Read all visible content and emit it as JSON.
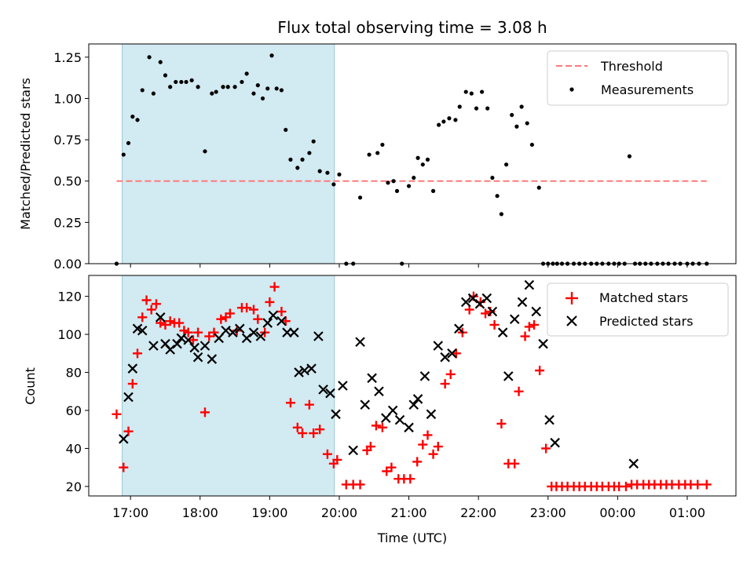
{
  "chart_data": {
    "title": "Flux total observing time = 3.08 h",
    "xlabel": "Time (UTC)",
    "x_unit": "hours UTC (values > 24 are after midnight)",
    "x_range": [
      16.4,
      25.7
    ],
    "x_ticks": [
      {
        "value": 17,
        "label": "17:00"
      },
      {
        "value": 18,
        "label": "18:00"
      },
      {
        "value": 19,
        "label": "19:00"
      },
      {
        "value": 20,
        "label": "20:00"
      },
      {
        "value": 21,
        "label": "21:00"
      },
      {
        "value": 22,
        "label": "22:00"
      },
      {
        "value": 23,
        "label": "23:00"
      },
      {
        "value": 24,
        "label": "00:00"
      },
      {
        "value": 25,
        "label": "01:00"
      }
    ],
    "shaded_region": {
      "x_start": 16.88,
      "x_end": 19.93,
      "color": "#add8e6"
    },
    "top_panel": {
      "type": "scatter",
      "ylabel": "Matched/Predicted stars",
      "ylim": [
        0,
        1.33
      ],
      "yticks": [
        "0.00",
        "0.25",
        "0.50",
        "0.75",
        "1.00",
        "1.25"
      ],
      "threshold": {
        "name": "Threshold",
        "value": 0.5,
        "x_start": 16.8,
        "x_end": 25.28,
        "color": "#ff8080"
      },
      "measurements": {
        "name": "Measurements",
        "color": "#000000",
        "x": [
          16.8,
          16.9,
          16.97,
          17.03,
          17.1,
          17.17,
          17.27,
          17.33,
          17.43,
          17.5,
          17.57,
          17.65,
          17.73,
          17.8,
          17.88,
          17.97,
          18.07,
          18.17,
          18.23,
          18.33,
          18.4,
          18.5,
          18.6,
          18.67,
          18.77,
          18.83,
          18.9,
          18.97,
          19.03,
          19.1,
          19.17,
          19.23,
          19.3,
          19.4,
          19.47,
          19.57,
          19.63,
          19.72,
          19.83,
          19.92,
          20.0,
          20.1,
          20.2,
          20.3,
          20.43,
          20.55,
          20.62,
          20.7,
          20.78,
          20.83,
          20.9,
          21.0,
          21.07,
          21.13,
          21.2,
          21.27,
          21.35,
          21.43,
          21.5,
          21.58,
          21.67,
          21.73,
          21.82,
          21.9,
          21.97,
          22.05,
          22.13,
          22.2,
          22.27,
          22.33,
          22.4,
          22.48,
          22.55,
          22.62,
          22.7,
          22.77,
          22.87,
          22.93,
          23.0,
          23.07,
          23.13,
          23.2,
          23.28,
          23.37,
          23.45,
          23.53,
          23.62,
          23.7,
          23.78,
          23.87,
          23.95,
          24.02,
          24.1,
          24.17,
          24.25,
          24.32,
          24.4,
          24.48,
          24.57,
          24.65,
          24.73,
          24.82,
          24.9,
          25.0,
          25.08,
          25.17,
          25.28
        ],
        "y": [
          0.0,
          0.66,
          0.73,
          0.89,
          0.87,
          1.05,
          1.25,
          1.03,
          1.22,
          1.14,
          1.07,
          1.1,
          1.1,
          1.1,
          1.11,
          1.07,
          0.68,
          1.03,
          1.04,
          1.07,
          1.07,
          1.07,
          1.1,
          1.15,
          1.03,
          1.08,
          1.0,
          1.06,
          1.26,
          1.06,
          1.05,
          0.81,
          0.63,
          0.58,
          0.63,
          0.67,
          0.74,
          0.56,
          0.55,
          0.48,
          0.54,
          0.0,
          0.0,
          0.4,
          0.66,
          0.67,
          0.72,
          0.49,
          0.5,
          0.44,
          0.0,
          0.47,
          0.52,
          0.64,
          0.6,
          0.63,
          0.44,
          0.84,
          0.86,
          0.88,
          0.87,
          0.95,
          1.04,
          1.03,
          0.94,
          1.04,
          0.94,
          0.52,
          0.41,
          0.3,
          0.6,
          0.9,
          0.83,
          0.95,
          0.85,
          0.72,
          0.46,
          0.0,
          0.0,
          0.0,
          0.0,
          0.0,
          0.0,
          0.0,
          0.0,
          0.0,
          0.0,
          0.0,
          0.0,
          0.0,
          0.0,
          0.0,
          0.0,
          0.65,
          0.0,
          0.0,
          0.0,
          0.0,
          0.0,
          0.0,
          0.0,
          0.0,
          0.0,
          0.0,
          0.0,
          0.0,
          0.0
        ]
      },
      "legend": {
        "position": "upper right",
        "entries": [
          "Threshold",
          "Measurements"
        ]
      }
    },
    "bottom_panel": {
      "type": "scatter",
      "ylabel": "Count",
      "ylim": [
        15,
        131
      ],
      "yticks": [
        "20",
        "40",
        "60",
        "80",
        "100",
        "120"
      ],
      "series": [
        {
          "name": "Matched stars",
          "marker": "+",
          "color": "#ff0000",
          "x": [
            16.8,
            16.9,
            16.97,
            17.03,
            17.1,
            17.17,
            17.23,
            17.3,
            17.37,
            17.43,
            17.5,
            17.57,
            17.63,
            17.7,
            17.77,
            17.83,
            17.9,
            17.97,
            18.07,
            18.13,
            18.2,
            18.3,
            18.37,
            18.43,
            18.53,
            18.6,
            18.67,
            18.77,
            18.83,
            18.93,
            19.0,
            19.07,
            19.17,
            19.23,
            19.3,
            19.4,
            19.47,
            19.57,
            19.63,
            19.72,
            19.83,
            19.92,
            19.97,
            20.1,
            20.2,
            20.3,
            20.4,
            20.45,
            20.53,
            20.62,
            20.68,
            20.75,
            20.85,
            20.93,
            21.02,
            21.12,
            21.2,
            21.27,
            21.35,
            21.42,
            21.52,
            21.6,
            21.68,
            21.77,
            21.87,
            21.93,
            22.03,
            22.1,
            22.17,
            22.23,
            22.33,
            22.43,
            22.52,
            22.58,
            22.67,
            22.73,
            22.8,
            22.88,
            22.97,
            23.05,
            23.12,
            23.2,
            23.28,
            23.37,
            23.45,
            23.53,
            23.62,
            23.7,
            23.78,
            23.87,
            23.95,
            24.02,
            24.12,
            24.2,
            24.28,
            24.37,
            24.45,
            24.53,
            24.62,
            24.7,
            24.78,
            24.88,
            24.97,
            25.05,
            25.15,
            25.28
          ],
          "y": [
            58,
            30,
            49,
            74,
            90,
            109,
            118,
            113,
            116,
            106,
            105,
            107,
            106,
            106,
            102,
            101,
            97,
            101,
            59,
            99,
            101,
            108,
            109,
            111,
            102,
            114,
            114,
            113,
            108,
            101,
            117,
            125,
            112,
            107,
            64,
            51,
            48,
            63,
            48,
            50,
            37,
            32,
            34,
            21,
            21,
            21,
            39,
            41,
            52,
            51,
            28,
            30,
            24,
            24,
            24,
            33,
            42,
            47,
            37,
            41,
            74,
            79,
            90,
            101,
            113,
            120,
            117,
            111,
            112,
            105,
            53,
            32,
            32,
            70,
            99,
            104,
            105,
            81,
            40,
            20,
            20,
            20,
            20,
            20,
            20,
            20,
            20,
            20,
            20,
            20,
            20,
            20,
            20,
            21,
            21,
            21,
            21,
            21,
            21,
            21,
            21,
            21,
            21,
            21,
            21,
            21
          ]
        },
        {
          "name": "Predicted stars",
          "marker": "x",
          "color": "#000000",
          "x": [
            16.9,
            16.97,
            17.03,
            17.1,
            17.17,
            17.33,
            17.43,
            17.5,
            17.57,
            17.67,
            17.73,
            17.83,
            17.92,
            17.97,
            18.07,
            18.17,
            18.27,
            18.37,
            18.47,
            18.57,
            18.67,
            18.77,
            18.87,
            18.97,
            19.05,
            19.17,
            19.25,
            19.35,
            19.42,
            19.5,
            19.6,
            19.7,
            19.77,
            19.87,
            19.95,
            20.05,
            20.2,
            20.3,
            20.37,
            20.47,
            20.57,
            20.67,
            20.77,
            20.87,
            21.0,
            21.07,
            21.13,
            21.23,
            21.32,
            21.42,
            21.52,
            21.62,
            21.72,
            21.82,
            21.92,
            22.02,
            22.12,
            22.2,
            22.35,
            22.43,
            22.52,
            22.63,
            22.73,
            22.83,
            22.93,
            23.02,
            23.1,
            24.23
          ],
          "y": [
            45,
            67,
            82,
            103,
            102,
            94,
            109,
            95,
            92,
            95,
            98,
            97,
            93,
            88,
            94,
            87,
            98,
            102,
            101,
            103,
            98,
            101,
            99,
            106,
            110,
            107,
            101,
            101,
            80,
            81,
            82,
            99,
            71,
            69,
            58,
            73,
            39,
            96,
            63,
            77,
            70,
            56,
            60,
            55,
            51,
            63,
            66,
            78,
            58,
            94,
            88,
            90,
            103,
            117,
            119,
            116,
            119,
            112,
            101,
            78,
            108,
            117,
            126,
            112,
            95,
            55,
            43,
            32
          ]
        }
      ],
      "legend": {
        "position": "upper right",
        "entries": [
          "Matched stars",
          "Predicted stars"
        ]
      }
    }
  }
}
